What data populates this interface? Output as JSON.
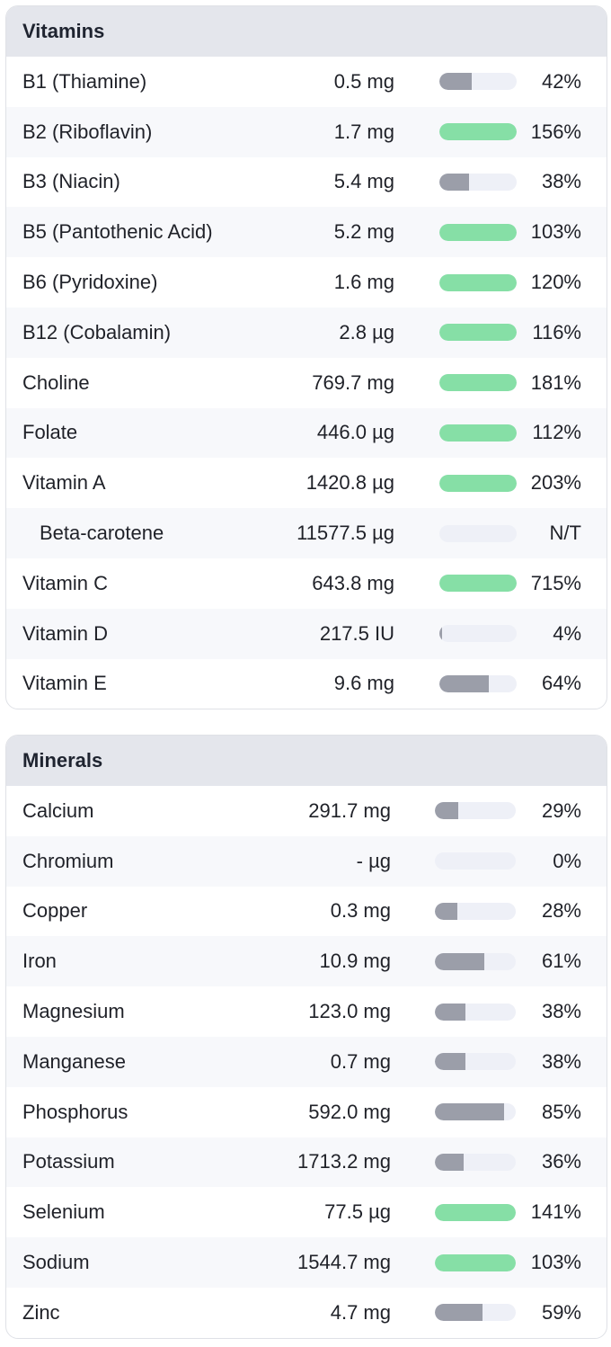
{
  "colors": {
    "header_bg": "#e4e6ec",
    "bar_track": "#eef0f7",
    "bar_low": "#9b9ea9",
    "bar_met": "#86dfa6"
  },
  "vitamins": {
    "title": "Vitamins",
    "rows": [
      {
        "name": "B1 (Thiamine)",
        "amount": "0.5 mg",
        "pct": "42%",
        "level": 0.42
      },
      {
        "name": "B2 (Riboflavin)",
        "amount": "1.7 mg",
        "pct": "156%",
        "level": 1.56
      },
      {
        "name": "B3 (Niacin)",
        "amount": "5.4 mg",
        "pct": "38%",
        "level": 0.38
      },
      {
        "name": "B5 (Pantothenic Acid)",
        "amount": "5.2 mg",
        "pct": "103%",
        "level": 1.03
      },
      {
        "name": "B6 (Pyridoxine)",
        "amount": "1.6 mg",
        "pct": "120%",
        "level": 1.2
      },
      {
        "name": "B12 (Cobalamin)",
        "amount": "2.8 µg",
        "pct": "116%",
        "level": 1.16
      },
      {
        "name": "Choline",
        "amount": "769.7 mg",
        "pct": "181%",
        "level": 1.81
      },
      {
        "name": "Folate",
        "amount": "446.0 µg",
        "pct": "112%",
        "level": 1.12
      },
      {
        "name": "Vitamin A",
        "amount": "1420.8 µg",
        "pct": "203%",
        "level": 2.03
      },
      {
        "name": "Beta-carotene",
        "amount": "11577.5 µg",
        "pct": "N/T",
        "level": 0,
        "sub": true
      },
      {
        "name": "Vitamin C",
        "amount": "643.8 mg",
        "pct": "715%",
        "level": 7.15
      },
      {
        "name": "Vitamin D",
        "amount": "217.5 IU",
        "pct": "4%",
        "level": 0.04
      },
      {
        "name": "Vitamin E",
        "amount": "9.6 mg",
        "pct": "64%",
        "level": 0.64
      }
    ]
  },
  "minerals": {
    "title": "Minerals",
    "rows": [
      {
        "name": "Calcium",
        "amount": "291.7 mg",
        "pct": "29%",
        "level": 0.29
      },
      {
        "name": "Chromium",
        "amount": "- µg",
        "pct": "0%",
        "level": 0
      },
      {
        "name": "Copper",
        "amount": "0.3 mg",
        "pct": "28%",
        "level": 0.28
      },
      {
        "name": "Iron",
        "amount": "10.9 mg",
        "pct": "61%",
        "level": 0.61
      },
      {
        "name": "Magnesium",
        "amount": "123.0 mg",
        "pct": "38%",
        "level": 0.38
      },
      {
        "name": "Manganese",
        "amount": "0.7 mg",
        "pct": "38%",
        "level": 0.38
      },
      {
        "name": "Phosphorus",
        "amount": "592.0 mg",
        "pct": "85%",
        "level": 0.85
      },
      {
        "name": "Potassium",
        "amount": "1713.2 mg",
        "pct": "36%",
        "level": 0.36
      },
      {
        "name": "Selenium",
        "amount": "77.5 µg",
        "pct": "141%",
        "level": 1.41
      },
      {
        "name": "Sodium",
        "amount": "1544.7 mg",
        "pct": "103%",
        "level": 1.03
      },
      {
        "name": "Zinc",
        "amount": "4.7 mg",
        "pct": "59%",
        "level": 0.59
      }
    ]
  }
}
